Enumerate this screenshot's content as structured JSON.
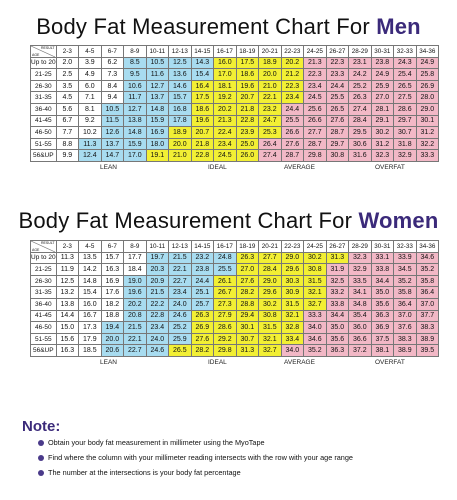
{
  "men": {
    "title_prefix": "Body Fat Measurement Chart For ",
    "title_highlight": "Men",
    "header": {
      "result": "RESULT",
      "age": "AGE"
    },
    "columns": [
      "2-3",
      "4-5",
      "6-7",
      "8-9",
      "10-11",
      "12-13",
      "14-15",
      "16-17",
      "18-19",
      "20-21",
      "22-23",
      "24-25",
      "26-27",
      "28-29",
      "30-31",
      "32-33",
      "34-36"
    ],
    "rows": [
      {
        "age": "Up to 20",
        "values": [
          "2.0",
          "3.9",
          "6.2",
          "8.5",
          "10.5",
          "12.5",
          "14.3",
          "16.0",
          "17.5",
          "18.9",
          "20.2",
          "21.3",
          "22.3",
          "23.1",
          "23.8",
          "24.3",
          "24.9"
        ]
      },
      {
        "age": "21-25",
        "values": [
          "2.5",
          "4.9",
          "7.3",
          "9.5",
          "11.6",
          "13.6",
          "15.4",
          "17.0",
          "18.6",
          "20.0",
          "21.2",
          "22.3",
          "23.3",
          "24.2",
          "24.9",
          "25.4",
          "25.8"
        ]
      },
      {
        "age": "26-30",
        "values": [
          "3.5",
          "6.0",
          "8.4",
          "10.6",
          "12.7",
          "14.6",
          "16.4",
          "18.1",
          "19.6",
          "21.0",
          "22.3",
          "23.4",
          "24.4",
          "25.2",
          "25.9",
          "26.5",
          "26.9"
        ]
      },
      {
        "age": "31-35",
        "values": [
          "4.5",
          "7.1",
          "9.4",
          "11.7",
          "13.7",
          "15.7",
          "17.5",
          "19.2",
          "20.7",
          "22.1",
          "23.4",
          "24.5",
          "25.5",
          "26.3",
          "27.0",
          "27.5",
          "28.0"
        ]
      },
      {
        "age": "36-40",
        "values": [
          "5.6",
          "8.1",
          "10.5",
          "12.7",
          "14.8",
          "16.8",
          "18.6",
          "20.2",
          "21.8",
          "23.2",
          "24.4",
          "25.6",
          "26.5",
          "27.4",
          "28.1",
          "28.6",
          "29.0"
        ]
      },
      {
        "age": "41-45",
        "values": [
          "6.7",
          "9.2",
          "11.5",
          "13.8",
          "15.9",
          "17.8",
          "19.6",
          "21.3",
          "22.8",
          "24.7",
          "25.5",
          "26.6",
          "27.6",
          "28.4",
          "29.1",
          "29.7",
          "30.1"
        ]
      },
      {
        "age": "46-50",
        "values": [
          "7.7",
          "10.2",
          "12.6",
          "14.8",
          "16.9",
          "18.9",
          "20.7",
          "22.4",
          "23.9",
          "25.3",
          "26.6",
          "27.7",
          "28.7",
          "29.5",
          "30.2",
          "30.7",
          "31.2"
        ]
      },
      {
        "age": "51-55",
        "values": [
          "8.8",
          "11.3",
          "13.7",
          "15.9",
          "18.0",
          "20.0",
          "21.8",
          "23.4",
          "25.0",
          "26.4",
          "27.6",
          "28.7",
          "29.7",
          "30.6",
          "31.2",
          "31.8",
          "32.2"
        ]
      },
      {
        "age": "56&UP",
        "values": [
          "9.9",
          "12.4",
          "14.7",
          "17.0",
          "19.1",
          "21.0",
          "22.8",
          "24.5",
          "26.0",
          "27.4",
          "28.7",
          "29.8",
          "30.8",
          "31.6",
          "32.3",
          "32.9",
          "33.3"
        ]
      }
    ],
    "zones": {
      "lean": "LEAN",
      "ideal": "IDEAL",
      "average": "AVERAGE",
      "overfat": "OVERFAT"
    }
  },
  "women": {
    "title_prefix": "Body Fat Measurement Chart For ",
    "title_highlight": "Women",
    "header": {
      "result": "RESULT",
      "age": "AGE"
    },
    "columns": [
      "2-3",
      "4-5",
      "6-7",
      "8-9",
      "10-11",
      "12-13",
      "14-15",
      "16-17",
      "18-19",
      "20-21",
      "22-23",
      "24-25",
      "26-27",
      "28-29",
      "30-31",
      "32-33",
      "34-36"
    ],
    "rows": [
      {
        "age": "Up to 20",
        "values": [
          "11.3",
          "13.5",
          "15.7",
          "17.7",
          "19.7",
          "21.5",
          "23.2",
          "24.8",
          "26.3",
          "27.7",
          "29.0",
          "30.2",
          "31.3",
          "32.3",
          "33.1",
          "33.9",
          "34.6"
        ]
      },
      {
        "age": "21-25",
        "values": [
          "11.9",
          "14.2",
          "16.3",
          "18.4",
          "20.3",
          "22.1",
          "23.8",
          "25.5",
          "27.0",
          "28.4",
          "29.6",
          "30.8",
          "31.9",
          "32.9",
          "33.8",
          "34.5",
          "35.2"
        ]
      },
      {
        "age": "26-30",
        "values": [
          "12.5",
          "14.8",
          "16.9",
          "19.0",
          "20.9",
          "22.7",
          "24.4",
          "26.1",
          "27.6",
          "29.0",
          "30.3",
          "31.5",
          "32.5",
          "33.5",
          "34.4",
          "35.2",
          "35.8"
        ]
      },
      {
        "age": "31-35",
        "values": [
          "13.2",
          "15.4",
          "17.6",
          "19.6",
          "21.5",
          "23.4",
          "25.1",
          "26.7",
          "28.2",
          "29.6",
          "30.9",
          "32.1",
          "33.2",
          "34.1",
          "35.0",
          "35.8",
          "36.4"
        ]
      },
      {
        "age": "36-40",
        "values": [
          "13.8",
          "16.0",
          "18.2",
          "20.2",
          "22.2",
          "24.0",
          "25.7",
          "27.3",
          "28.8",
          "30.2",
          "31.5",
          "32.7",
          "33.8",
          "34.8",
          "35.6",
          "36.4",
          "37.0"
        ]
      },
      {
        "age": "41-45",
        "values": [
          "14.4",
          "16.7",
          "18.8",
          "20.8",
          "22.8",
          "24.6",
          "26.3",
          "27.9",
          "29.4",
          "30.8",
          "32.1",
          "33.3",
          "34.4",
          "35.4",
          "36.3",
          "37.0",
          "37.7"
        ]
      },
      {
        "age": "46-50",
        "values": [
          "15.0",
          "17.3",
          "19.4",
          "21.5",
          "23.4",
          "25.2",
          "26.9",
          "28.6",
          "30.1",
          "31.5",
          "32.8",
          "34.0",
          "35.0",
          "36.0",
          "36.9",
          "37.6",
          "38.3"
        ]
      },
      {
        "age": "51-55",
        "values": [
          "15.6",
          "17.9",
          "20.0",
          "22.1",
          "24.0",
          "25.9",
          "27.6",
          "29.2",
          "30.7",
          "32.1",
          "33.4",
          "34.6",
          "35.6",
          "36.6",
          "37.5",
          "38.3",
          "38.9"
        ]
      },
      {
        "age": "56&UP",
        "values": [
          "16.3",
          "18.5",
          "20.6",
          "22.7",
          "24.6",
          "26.5",
          "28.2",
          "29.8",
          "31.3",
          "32.7",
          "34.0",
          "35.2",
          "36.3",
          "37.2",
          "38.1",
          "38.9",
          "39.5"
        ]
      }
    ],
    "zones": {
      "lean": "LEAN",
      "ideal": "IDEAL",
      "average": "AVERAGE",
      "overfat": "OVERFAT"
    }
  },
  "notes": {
    "title": "Note:",
    "items": [
      "Obtain your body fat measurement in millimeter using the MyoTape",
      "Find where the column with your millimeter reading intersects with the row with your age range",
      "The number at the intersections is your body fat percentage"
    ]
  },
  "colors": {
    "lean": "#ffffff",
    "ideal": "#a8dcf0",
    "average": "#f2ef34",
    "overfat": "#f2b8c6",
    "accent": "#3b2a7a"
  },
  "color_zones": {
    "men": [
      [
        3,
        7,
        11
      ],
      [
        3,
        7,
        11
      ],
      [
        3,
        6,
        11
      ],
      [
        3,
        6,
        11
      ],
      [
        2,
        6,
        10
      ],
      [
        2,
        6,
        10
      ],
      [
        2,
        5,
        10
      ],
      [
        1,
        5,
        9
      ],
      [
        1,
        4,
        9
      ]
    ],
    "women": [
      [
        4,
        8,
        13
      ],
      [
        4,
        8,
        12
      ],
      [
        3,
        7,
        12
      ],
      [
        3,
        7,
        12
      ],
      [
        3,
        7,
        12
      ],
      [
        3,
        6,
        11
      ],
      [
        2,
        6,
        11
      ],
      [
        2,
        6,
        11
      ],
      [
        2,
        5,
        10
      ]
    ]
  }
}
